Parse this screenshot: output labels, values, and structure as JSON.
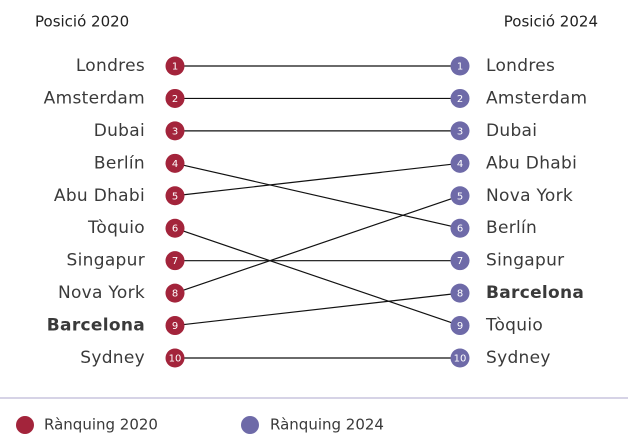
{
  "chart_data": {
    "type": "slope",
    "left_title": "Posició 2020",
    "right_title": "Posició 2024",
    "categories": [
      "Londres",
      "Amsterdam",
      "Dubai",
      "Berlín",
      "Abu Dhabi",
      "Tòquio",
      "Singapur",
      "Nova York",
      "Barcelona",
      "Sydney"
    ],
    "series": [
      {
        "name": "Rànquing 2020",
        "color": "#a3243b",
        "values": [
          1,
          2,
          3,
          4,
          5,
          6,
          7,
          8,
          9,
          10
        ]
      },
      {
        "name": "Rànquing 2024",
        "color": "#6e6aa8",
        "values": [
          1,
          2,
          3,
          6,
          4,
          9,
          7,
          5,
          8,
          10
        ]
      }
    ],
    "ylim": [
      1,
      10
    ],
    "highlight": "Barcelona",
    "highlight_color": "#a3243b"
  }
}
